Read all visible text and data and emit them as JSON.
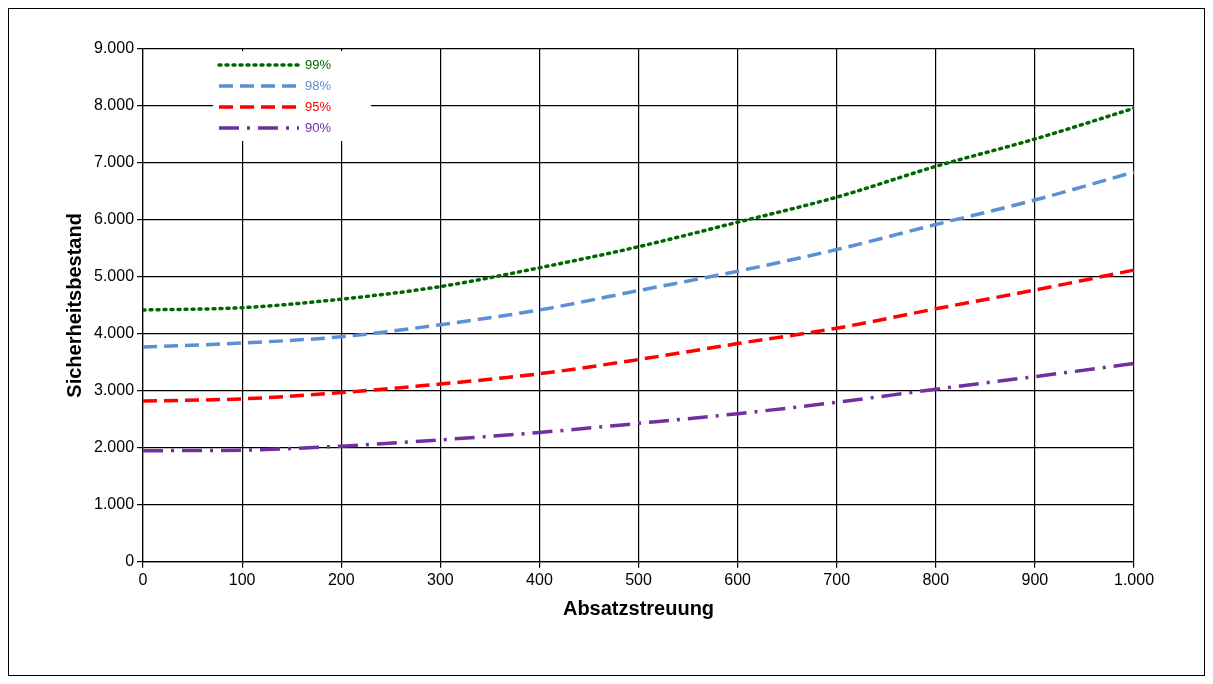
{
  "chart_data": {
    "type": "line",
    "xlabel": "Absatzstreuung",
    "ylabel": "Sicherheitsbestand",
    "x": [
      0,
      100,
      200,
      300,
      400,
      500,
      600,
      700,
      800,
      900,
      1000
    ],
    "series": [
      {
        "name": "99%",
        "color": "#006600",
        "line_style": "dotted",
        "values": [
          4420,
          4460,
          4610,
          4830,
          5160,
          5530,
          5960,
          6400,
          6940,
          7420,
          7960
        ]
      },
      {
        "name": "98%",
        "color": "#5b8fd6",
        "line_style": "dashed",
        "values": [
          3770,
          3840,
          3950,
          4160,
          4420,
          4760,
          5100,
          5480,
          5920,
          6350,
          6840
        ]
      },
      {
        "name": "95%",
        "color": "#ff0000",
        "line_style": "dashed",
        "values": [
          2820,
          2860,
          2970,
          3120,
          3300,
          3550,
          3830,
          4100,
          4440,
          4770,
          5120
        ]
      },
      {
        "name": "90%",
        "color": "#7030a0",
        "line_style": "dashdot",
        "values": [
          1950,
          1960,
          2030,
          2140,
          2270,
          2430,
          2600,
          2800,
          3030,
          3250,
          3480
        ]
      }
    ],
    "xlim": [
      0,
      1000
    ],
    "xticks": [
      0,
      100,
      200,
      300,
      400,
      500,
      600,
      700,
      800,
      900,
      {
        "value": 1000,
        "label": "1.000"
      }
    ],
    "ylim": [
      0,
      9000
    ],
    "yticks": [
      0,
      {
        "value": 1000,
        "label": "1.000"
      },
      {
        "value": 2000,
        "label": "2.000"
      },
      {
        "value": 3000,
        "label": "3.000"
      },
      {
        "value": 4000,
        "label": "4.000"
      },
      {
        "value": 5000,
        "label": "5.000"
      },
      {
        "value": 6000,
        "label": "6.000"
      },
      {
        "value": 7000,
        "label": "7.000"
      },
      {
        "value": 8000,
        "label": "8.000"
      },
      {
        "value": 9000,
        "label": "9.000"
      }
    ],
    "grid": true,
    "legend": "top left",
    "marker": "none"
  }
}
